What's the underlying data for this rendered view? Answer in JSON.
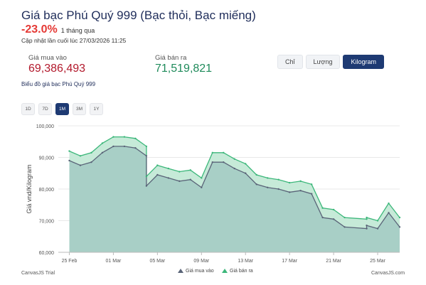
{
  "header": {
    "title": "Giá bạc Phú Quý 999 (Bạc thỏi, Bạc miếng)",
    "change": "-23.0%",
    "change_period": "1 tháng qua",
    "updated": "Cập nhật lần cuối lúc 27/03/2026 11:25"
  },
  "prices": {
    "buy_label": "Giá mua vào",
    "buy_value": "69,386,493",
    "sell_label": "Giá bán ra",
    "sell_value": "71,519,821"
  },
  "unit_tabs": [
    {
      "label": "Chỉ",
      "active": false
    },
    {
      "label": "Lượng",
      "active": false
    },
    {
      "label": "Kilogram",
      "active": true
    }
  ],
  "chart_caption": "Biểu đồ giá bạc Phú Quý 999",
  "range_tabs": [
    {
      "label": "1D",
      "active": false
    },
    {
      "label": "7D",
      "active": false
    },
    {
      "label": "1M",
      "active": true
    },
    {
      "label": "3M",
      "active": false
    },
    {
      "label": "1Y",
      "active": false
    }
  ],
  "footer": {
    "left": "CanvasJS Trial",
    "right": "CanvasJS.com"
  },
  "colors": {
    "buy_line": "#5a6478",
    "buy_fill": "#a8cfc6",
    "sell_line": "#3cb77a",
    "sell_fill": "#c6ead8",
    "grid": "#e8e8e8"
  },
  "chart_data": {
    "type": "area",
    "x_label_start": "2026-02-25",
    "x_label_step_days": 4,
    "xlim": [
      "2026-02-24",
      "2026-03-27"
    ],
    "x_ticks": [
      "25 Feb",
      "01 Mar",
      "05 Mar",
      "09 Mar",
      "13 Mar",
      "17 Mar",
      "21 Mar",
      "25 Mar"
    ],
    "ylabel": "Giá vnd/Kilogram",
    "ylim": [
      60000,
      100000
    ],
    "y_ticks": [
      "60,000",
      "70,000",
      "80,000",
      "90,000",
      "100,000"
    ],
    "grid": true,
    "legend_position": "bottom",
    "series": [
      {
        "name": "Giá mua vào",
        "points": [
          [
            "2026-02-25",
            89000
          ],
          [
            "2026-02-26",
            87500
          ],
          [
            "2026-02-27",
            88500
          ],
          [
            "2026-02-28",
            91500
          ],
          [
            "2026-03-01",
            93500
          ],
          [
            "2026-03-02",
            93500
          ],
          [
            "2026-03-03",
            93000
          ],
          [
            "2026-03-04",
            90500
          ],
          [
            "2026-03-04",
            81000
          ],
          [
            "2026-03-05",
            84500
          ],
          [
            "2026-03-06",
            83500
          ],
          [
            "2026-03-07",
            82500
          ],
          [
            "2026-03-08",
            83000
          ],
          [
            "2026-03-09",
            80500
          ],
          [
            "2026-03-10",
            88500
          ],
          [
            "2026-03-11",
            88500
          ],
          [
            "2026-03-12",
            86500
          ],
          [
            "2026-03-13",
            85000
          ],
          [
            "2026-03-14",
            81500
          ],
          [
            "2026-03-15",
            80500
          ],
          [
            "2026-03-16",
            80000
          ],
          [
            "2026-03-17",
            79000
          ],
          [
            "2026-03-18",
            79500
          ],
          [
            "2026-03-19",
            78500
          ],
          [
            "2026-03-20",
            71000
          ],
          [
            "2026-03-21",
            70500
          ],
          [
            "2026-03-22",
            68000
          ],
          [
            "2026-03-24",
            67500
          ],
          [
            "2026-03-24",
            68500
          ],
          [
            "2026-03-25",
            67500
          ],
          [
            "2026-03-26",
            72500
          ],
          [
            "2026-03-27",
            68000
          ]
        ]
      },
      {
        "name": "Giá bán ra",
        "points": [
          [
            "2026-02-25",
            92000
          ],
          [
            "2026-02-26",
            90500
          ],
          [
            "2026-02-27",
            91500
          ],
          [
            "2026-02-28",
            94500
          ],
          [
            "2026-03-01",
            96500
          ],
          [
            "2026-03-02",
            96500
          ],
          [
            "2026-03-03",
            96000
          ],
          [
            "2026-03-04",
            93500
          ],
          [
            "2026-03-04",
            84000
          ],
          [
            "2026-03-05",
            87500
          ],
          [
            "2026-03-06",
            86500
          ],
          [
            "2026-03-07",
            85500
          ],
          [
            "2026-03-08",
            86000
          ],
          [
            "2026-03-09",
            83500
          ],
          [
            "2026-03-10",
            91500
          ],
          [
            "2026-03-11",
            91500
          ],
          [
            "2026-03-12",
            89500
          ],
          [
            "2026-03-13",
            88000
          ],
          [
            "2026-03-14",
            84500
          ],
          [
            "2026-03-15",
            83500
          ],
          [
            "2026-03-16",
            83000
          ],
          [
            "2026-03-17",
            82000
          ],
          [
            "2026-03-18",
            82500
          ],
          [
            "2026-03-19",
            81500
          ],
          [
            "2026-03-20",
            74000
          ],
          [
            "2026-03-21",
            73500
          ],
          [
            "2026-03-22",
            71000
          ],
          [
            "2026-03-24",
            70500
          ],
          [
            "2026-03-24",
            71000
          ],
          [
            "2026-03-25",
            70000
          ],
          [
            "2026-03-26",
            75500
          ],
          [
            "2026-03-27",
            71000
          ]
        ]
      }
    ]
  }
}
